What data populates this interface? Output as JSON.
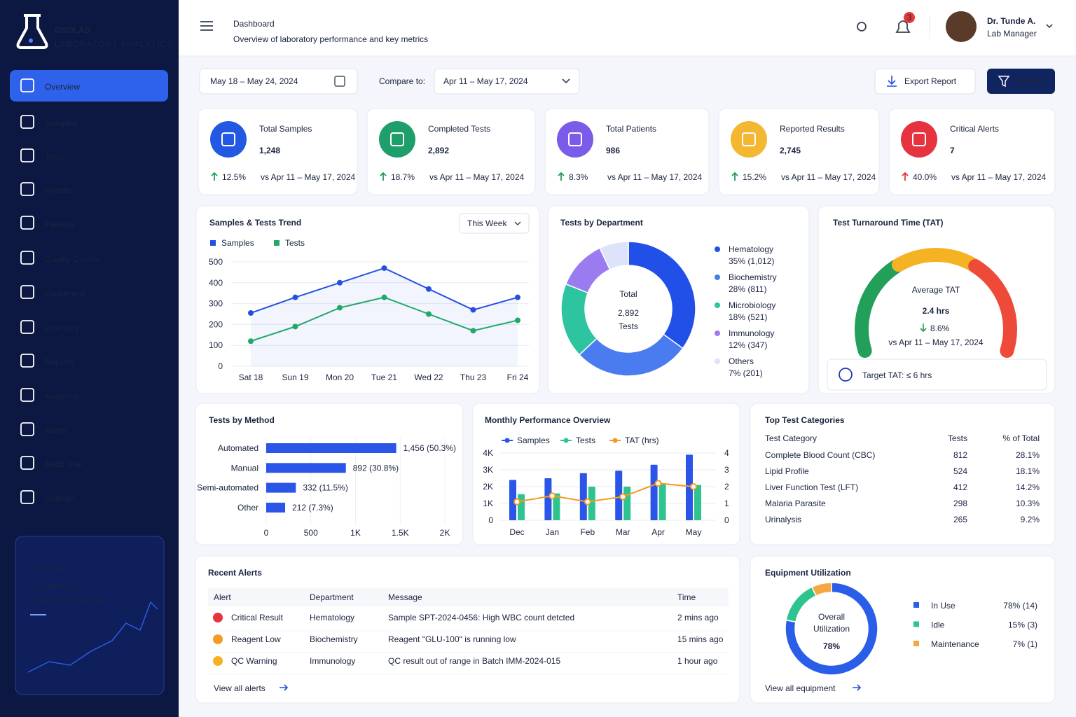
{
  "sidebar": {
    "brand": "OSOLAB",
    "tagline": "LABORATORY ANALYTICS",
    "nav": [
      "Overview",
      "Samples",
      "Tests",
      "Results",
      "Patients",
      "Quality Control",
      "Equipment",
      "Inventory",
      "Reports",
      "Analytics",
      "Alerts",
      "Audit Trail",
      "Settings"
    ],
    "promo": {
      "title": "OSOLAB",
      "lines": [
        "Excellence in",
        "Laboratory Services"
      ]
    }
  },
  "header": {
    "title": "Dashboard",
    "subtitle": "Overview of laboratory performance and key metrics",
    "notifications": "3",
    "user_name": "Dr. Tunde A.",
    "user_role": "Lab Manager"
  },
  "filters": {
    "date_range": "May 18 – May 24, 2024",
    "compare_label": "Compare to:",
    "compare_range": "Apr 11 – May 17, 2024",
    "export": "Export Report",
    "filters": "Filters"
  },
  "kpis": [
    {
      "label": "Total Samples",
      "value": "1,248",
      "change": "12.5%",
      "compare": "vs Apr 11 – May 17, 2024",
      "color": "#2358e3"
    },
    {
      "label": "Completed Tests",
      "value": "2,892",
      "change": "18.7%",
      "compare": "vs Apr 11 – May 17, 2024",
      "color": "#1e9e6b"
    },
    {
      "label": "Total Patients",
      "value": "986",
      "change": "8.3%",
      "compare": "vs Apr 11 – May 17, 2024",
      "color": "#7b5ce8"
    },
    {
      "label": "Reported Results",
      "value": "2,745",
      "change": "15.2%",
      "compare": "vs Apr 11 – May 17, 2024",
      "color": "#f4b731"
    },
    {
      "label": "Critical Alerts",
      "value": "7",
      "change": "40.0%",
      "compare": "vs Apr 11 – May 17, 2024",
      "color": "#e5343f"
    }
  ],
  "chart_data": [
    {
      "type": "line",
      "title": "Samples & Tests Trend",
      "dropdown": "This Week",
      "categories": [
        "Sat 18",
        "Sun 19",
        "Mon 20",
        "Tue 21",
        "Wed 22",
        "Thu 23",
        "Fri 24"
      ],
      "series": [
        {
          "name": "Samples",
          "color": "#2450e0",
          "values": [
            255,
            330,
            400,
            470,
            370,
            270,
            330
          ]
        },
        {
          "name": "Tests",
          "color": "#22a86b",
          "values": [
            120,
            190,
            280,
            330,
            250,
            170,
            220
          ]
        }
      ],
      "ylim": [
        0,
        500
      ],
      "yticks": [
        0,
        100,
        200,
        300,
        400,
        500
      ],
      "grid": true
    },
    {
      "type": "pie",
      "title": "Tests by Department",
      "center_label": "Total",
      "center_value": "2,892",
      "center_unit": "Tests",
      "categories": [
        "Hematology",
        "Biochemistry",
        "Microbiology",
        "Immunology",
        "Others"
      ],
      "values": [
        35,
        28,
        18,
        12,
        7
      ],
      "value_labels": [
        "35% (1,012)",
        "28% (811)",
        "18% (521)",
        "12% (347)",
        "7% (201)"
      ],
      "colors": [
        "#2150e8",
        "#4a7cf0",
        "#2ec4a0",
        "#9b7bf0",
        "#dce3fa"
      ]
    },
    {
      "type": "bar",
      "title": "Tests by Method",
      "orientation": "horizontal",
      "categories": [
        "Automated",
        "Manual",
        "Semi-automated",
        "Other"
      ],
      "values": [
        1456,
        892,
        332,
        212
      ],
      "value_labels": [
        "1,456 (50.3%)",
        "892 (30.8%)",
        "332 (11.5%)",
        "212 (7.3%)"
      ],
      "color": "#2a55e8",
      "xlim": [
        0,
        2000
      ],
      "xticks": [
        0,
        500,
        {
          "value": 1000,
          "label": "1K"
        },
        {
          "value": 1500,
          "label": "1.5K"
        },
        {
          "value": 2000,
          "label": "2K"
        }
      ],
      "grid": true
    },
    {
      "type": "combo",
      "title": "Monthly Performance Overview",
      "categories": [
        "Dec",
        "Jan",
        "Feb",
        "Mar",
        "Apr",
        "May"
      ],
      "series": [
        {
          "name": "Samples",
          "type": "bar",
          "color": "#2a55e8",
          "values": [
            2400,
            2500,
            2800,
            2950,
            3300,
            3900
          ]
        },
        {
          "name": "Tests",
          "type": "bar",
          "color": "#2ec48f",
          "values": [
            1550,
            1600,
            2000,
            2000,
            2200,
            2100
          ]
        },
        {
          "name": "TAT (hrs)",
          "type": "line",
          "axis": "y2",
          "color": "#f59a23",
          "values": [
            1.1,
            1.45,
            1.1,
            1.4,
            2.2,
            2.0
          ]
        }
      ],
      "ylim": [
        0,
        4000
      ],
      "yticks": [
        0,
        {
          "value": 1000,
          "label": "1K"
        },
        {
          "value": 2000,
          "label": "2K"
        },
        {
          "value": 3000,
          "label": "3K"
        },
        {
          "value": 4000,
          "label": "4K"
        }
      ],
      "y2lim": [
        0,
        4
      ],
      "y2ticks": [
        0,
        1,
        2,
        3,
        4
      ],
      "grid": true
    },
    {
      "type": "pie",
      "title": "Equipment Utilization",
      "center_lines": [
        "Overall",
        "Utilization"
      ],
      "center_value": "78%",
      "categories": [
        "In Use",
        "Idle",
        "Maintenance"
      ],
      "values": [
        78,
        15,
        7
      ],
      "value_labels": [
        "78% (14)",
        "15% (3)",
        "7% (1)"
      ],
      "colors": [
        "#2a5ee8",
        "#2ec48f",
        "#f5a840"
      ],
      "link": "View all equipment"
    }
  ],
  "tat": {
    "title": "Test Turnaround Time (TAT)",
    "label": "Average TAT",
    "value": "2.4 hrs",
    "change": "8.6%",
    "compare": "vs Apr 11 – May 17, 2024",
    "target": "Target TAT: ≤ 6 hrs"
  },
  "top_categories": {
    "title": "Top Test Categories",
    "headers": [
      "Test Category",
      "Tests",
      "% of Total"
    ],
    "rows": [
      [
        "Complete Blood Count (CBC)",
        "812",
        "28.1%"
      ],
      [
        "Lipid Profile",
        "524",
        "18.1%"
      ],
      [
        "Liver Function Test (LFT)",
        "412",
        "14.2%"
      ],
      [
        "Malaria Parasite",
        "298",
        "10.3%"
      ],
      [
        "Urinalysis",
        "265",
        "9.2%"
      ]
    ]
  },
  "recent_alerts": {
    "title": "Recent Alerts",
    "headers": [
      "Alert",
      "Department",
      "Message",
      "Time"
    ],
    "rows": [
      [
        "Critical Result",
        "Hematology",
        "Sample SPT-2024-0456: High WBC count detcted",
        "2 mins ago"
      ],
      [
        "Reagent Low",
        "Biochemistry",
        "Reagent \"GLU-100\" is running low",
        "15 mins ago"
      ],
      [
        "QC Warning",
        "Immunology",
        "QC result out of range in Batch IMM-2024-015",
        "1 hour ago"
      ]
    ],
    "link": "View all alerts"
  }
}
